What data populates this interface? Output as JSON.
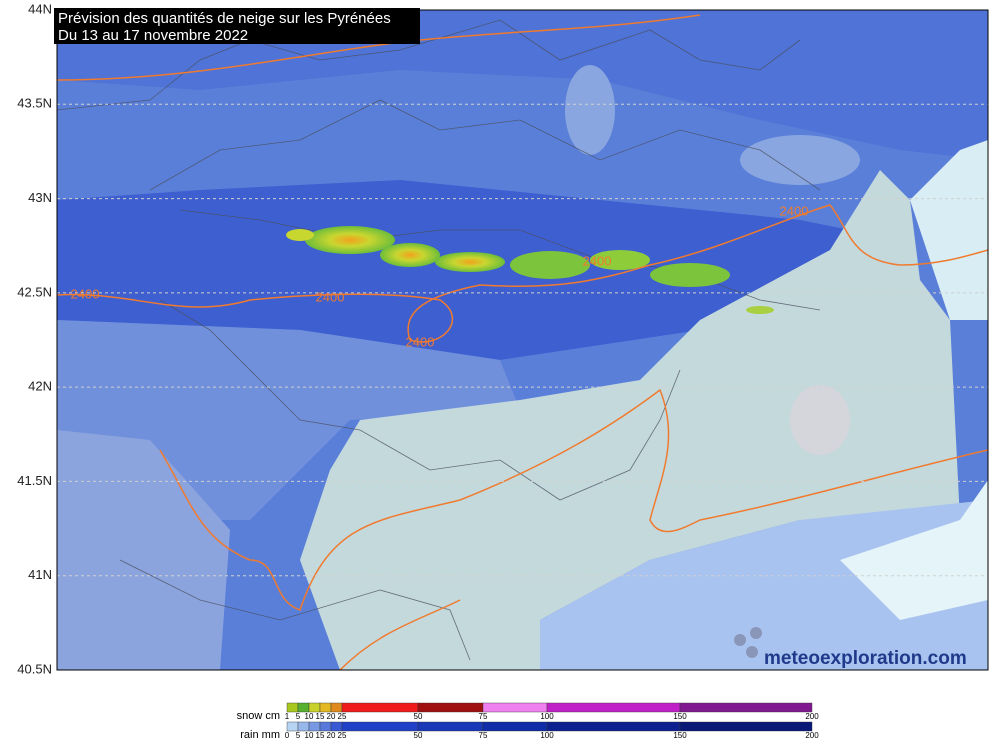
{
  "header": {
    "title_lines": [
      "Prévision des quantités de neige sur les Pyrénées",
      "Du 13 au 17 novembre 2022"
    ]
  },
  "map": {
    "lat_labels": [
      "44N",
      "43.5N",
      "43N",
      "42.5N",
      "42N",
      "41.5N",
      "41N",
      "40.5N"
    ],
    "contour_labels": [
      "2400",
      "2400",
      "2400",
      "2400",
      "2400"
    ]
  },
  "legend": {
    "snow": {
      "label": "snow cm",
      "ticks": [
        "1",
        "5",
        "10",
        "15",
        "20",
        "25",
        "50",
        "75",
        "100",
        "150",
        "200"
      ]
    },
    "rain": {
      "label": "rain mm",
      "ticks": [
        "0",
        "5",
        "10",
        "15",
        "20",
        "25",
        "50",
        "75",
        "100",
        "150",
        "200"
      ]
    }
  },
  "watermark": "meteoexploration.com"
}
